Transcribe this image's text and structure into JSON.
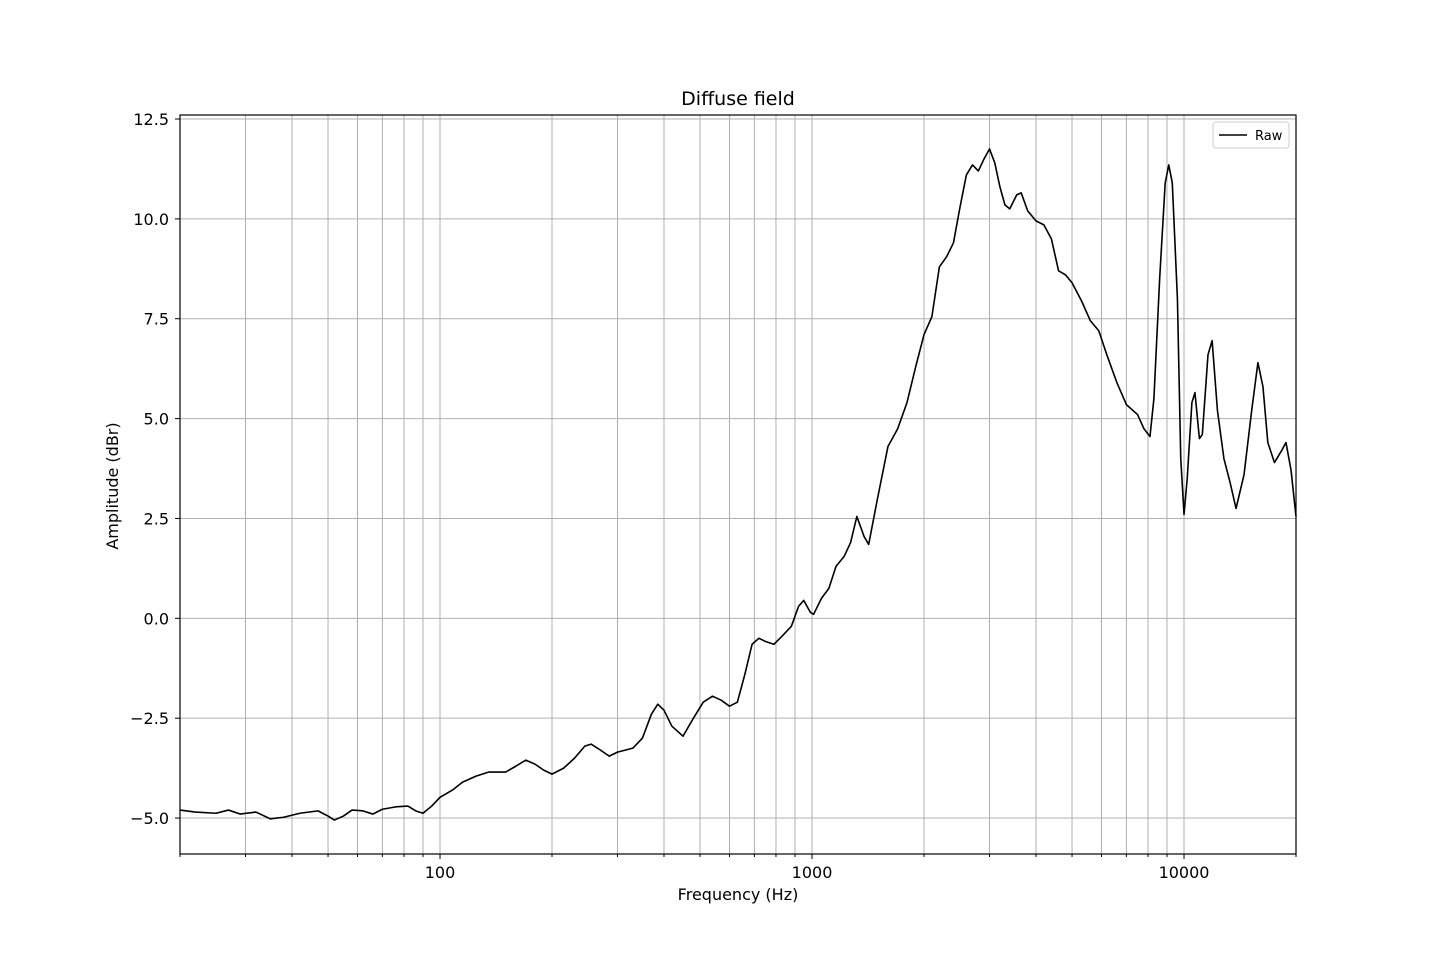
{
  "chart_data": {
    "type": "line",
    "title": "Diffuse field",
    "xlabel": "Frequency (Hz)",
    "ylabel": "Amplitude (dBr)",
    "xscale": "log",
    "xlim": [
      20,
      20000
    ],
    "ylim": [
      -5.9,
      12.6
    ],
    "grid": true,
    "legend_position": "top-right",
    "x_tick_labels": [
      {
        "value": 100,
        "label": "100"
      },
      {
        "value": 1000,
        "label": "1000"
      },
      {
        "value": 10000,
        "label": "10000"
      }
    ],
    "y_tick_labels": [
      {
        "value": -5.0,
        "label": "−5.0"
      },
      {
        "value": -2.5,
        "label": "−2.5"
      },
      {
        "value": 0.0,
        "label": "0.0"
      },
      {
        "value": 2.5,
        "label": "2.5"
      },
      {
        "value": 5.0,
        "label": "5.0"
      },
      {
        "value": 7.5,
        "label": "7.5"
      },
      {
        "value": 10.0,
        "label": "10.0"
      },
      {
        "value": 12.5,
        "label": "12.5"
      }
    ],
    "series": [
      {
        "name": "Raw",
        "color": "#000000",
        "points": [
          [
            20,
            -4.8
          ],
          [
            22,
            -4.85
          ],
          [
            25,
            -4.88
          ],
          [
            27,
            -4.8
          ],
          [
            29,
            -4.9
          ],
          [
            32,
            -4.85
          ],
          [
            35,
            -5.02
          ],
          [
            38,
            -4.98
          ],
          [
            42,
            -4.88
          ],
          [
            47,
            -4.82
          ],
          [
            50,
            -4.95
          ],
          [
            52,
            -5.05
          ],
          [
            55,
            -4.95
          ],
          [
            58,
            -4.8
          ],
          [
            62,
            -4.82
          ],
          [
            66,
            -4.9
          ],
          [
            70,
            -4.78
          ],
          [
            76,
            -4.72
          ],
          [
            82,
            -4.7
          ],
          [
            86,
            -4.82
          ],
          [
            90,
            -4.88
          ],
          [
            95,
            -4.7
          ],
          [
            100,
            -4.48
          ],
          [
            108,
            -4.3
          ],
          [
            115,
            -4.1
          ],
          [
            125,
            -3.95
          ],
          [
            135,
            -3.85
          ],
          [
            150,
            -3.85
          ],
          [
            160,
            -3.7
          ],
          [
            170,
            -3.55
          ],
          [
            180,
            -3.65
          ],
          [
            190,
            -3.8
          ],
          [
            200,
            -3.9
          ],
          [
            215,
            -3.75
          ],
          [
            230,
            -3.5
          ],
          [
            245,
            -3.2
          ],
          [
            255,
            -3.15
          ],
          [
            270,
            -3.3
          ],
          [
            285,
            -3.45
          ],
          [
            300,
            -3.35
          ],
          [
            330,
            -3.25
          ],
          [
            350,
            -3.0
          ],
          [
            370,
            -2.4
          ],
          [
            385,
            -2.15
          ],
          [
            400,
            -2.3
          ],
          [
            420,
            -2.7
          ],
          [
            450,
            -2.95
          ],
          [
            480,
            -2.5
          ],
          [
            510,
            -2.1
          ],
          [
            540,
            -1.95
          ],
          [
            570,
            -2.05
          ],
          [
            600,
            -2.2
          ],
          [
            630,
            -2.1
          ],
          [
            660,
            -1.4
          ],
          [
            690,
            -0.65
          ],
          [
            720,
            -0.5
          ],
          [
            750,
            -0.58
          ],
          [
            790,
            -0.65
          ],
          [
            830,
            -0.45
          ],
          [
            880,
            -0.2
          ],
          [
            920,
            0.3
          ],
          [
            950,
            0.45
          ],
          [
            990,
            0.15
          ],
          [
            1010,
            0.1
          ],
          [
            1060,
            0.5
          ],
          [
            1110,
            0.75
          ],
          [
            1160,
            1.3
          ],
          [
            1220,
            1.55
          ],
          [
            1270,
            1.9
          ],
          [
            1320,
            2.55
          ],
          [
            1380,
            2.05
          ],
          [
            1420,
            1.85
          ],
          [
            1500,
            3.0
          ],
          [
            1600,
            4.3
          ],
          [
            1700,
            4.75
          ],
          [
            1800,
            5.4
          ],
          [
            1900,
            6.3
          ],
          [
            2000,
            7.1
          ],
          [
            2100,
            7.55
          ],
          [
            2200,
            8.8
          ],
          [
            2300,
            9.05
          ],
          [
            2400,
            9.4
          ],
          [
            2500,
            10.3
          ],
          [
            2600,
            11.1
          ],
          [
            2700,
            11.35
          ],
          [
            2800,
            11.2
          ],
          [
            2900,
            11.5
          ],
          [
            3000,
            11.75
          ],
          [
            3100,
            11.4
          ],
          [
            3200,
            10.8
          ],
          [
            3300,
            10.35
          ],
          [
            3400,
            10.25
          ],
          [
            3550,
            10.6
          ],
          [
            3650,
            10.65
          ],
          [
            3800,
            10.2
          ],
          [
            4000,
            9.95
          ],
          [
            4200,
            9.85
          ],
          [
            4400,
            9.5
          ],
          [
            4600,
            8.7
          ],
          [
            4800,
            8.6
          ],
          [
            5000,
            8.4
          ],
          [
            5300,
            7.95
          ],
          [
            5600,
            7.45
          ],
          [
            5900,
            7.2
          ],
          [
            6200,
            6.6
          ],
          [
            6600,
            5.9
          ],
          [
            7000,
            5.35
          ],
          [
            7500,
            5.1
          ],
          [
            7800,
            4.75
          ],
          [
            8100,
            4.55
          ],
          [
            8300,
            5.5
          ],
          [
            8600,
            8.5
          ],
          [
            8900,
            10.9
          ],
          [
            9100,
            11.35
          ],
          [
            9300,
            10.9
          ],
          [
            9600,
            8.0
          ],
          [
            9800,
            4.0
          ],
          [
            10000,
            2.6
          ],
          [
            10200,
            3.5
          ],
          [
            10500,
            5.4
          ],
          [
            10700,
            5.65
          ],
          [
            11000,
            4.5
          ],
          [
            11200,
            4.6
          ],
          [
            11600,
            6.6
          ],
          [
            11900,
            6.95
          ],
          [
            12300,
            5.2
          ],
          [
            12800,
            4.0
          ],
          [
            13300,
            3.4
          ],
          [
            13800,
            2.75
          ],
          [
            14500,
            3.6
          ],
          [
            15200,
            5.2
          ],
          [
            15800,
            6.4
          ],
          [
            16300,
            5.8
          ],
          [
            16800,
            4.4
          ],
          [
            17500,
            3.9
          ],
          [
            18300,
            4.2
          ],
          [
            18800,
            4.4
          ],
          [
            19400,
            3.7
          ],
          [
            20000,
            2.55
          ]
        ]
      }
    ]
  }
}
